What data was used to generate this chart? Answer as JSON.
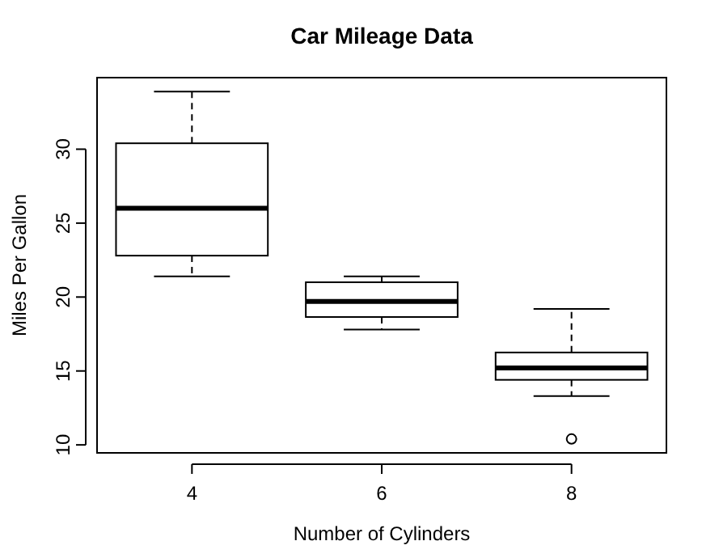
{
  "chart_data": {
    "type": "box",
    "title": "Car Mileage Data",
    "xlabel": "Number of Cylinders",
    "ylabel": "Miles Per Gallon",
    "categories": [
      "4",
      "6",
      "8"
    ],
    "boxes": [
      {
        "low": 21.4,
        "q1": 22.8,
        "median": 26,
        "q3": 30.4,
        "high": 33.9
      },
      {
        "low": 17.8,
        "q1": 18.65,
        "median": 19.7,
        "q3": 21,
        "high": 21.4
      },
      {
        "low": 13.3,
        "q1": 14.4,
        "median": 15.2,
        "q3": 16.25,
        "high": 19.2,
        "outliers": [
          10.4
        ]
      }
    ],
    "ylim": [
      9.46,
      34.84
    ],
    "yticks": [
      10,
      15,
      20,
      25,
      30
    ],
    "grid": false,
    "line_style": "dashed",
    "marker": "circle"
  }
}
